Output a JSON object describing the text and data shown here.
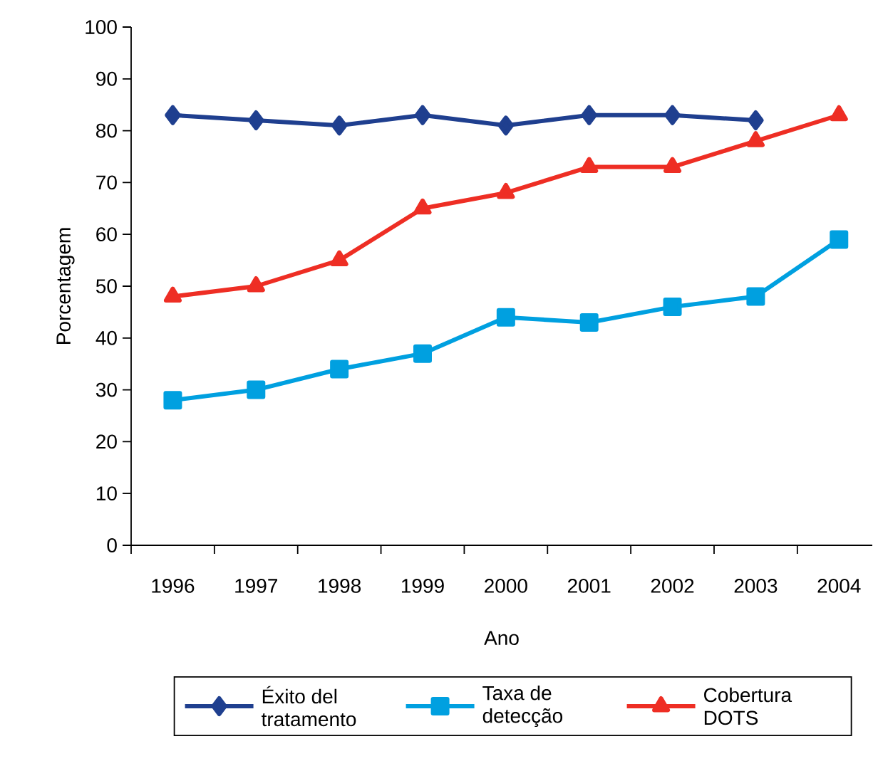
{
  "chart_data": {
    "type": "line",
    "xlabel": "Ano",
    "ylabel": "Porcentagem",
    "categories": [
      "1996",
      "1997",
      "1998",
      "1999",
      "2000",
      "2001",
      "2002",
      "2003",
      "2004"
    ],
    "series": [
      {
        "name": "Éxito del tratamento",
        "color": "#1f3f8f",
        "marker": "diamond",
        "values": [
          83,
          82,
          81,
          83,
          81,
          83,
          83,
          82,
          null
        ]
      },
      {
        "name": "Taxa de detecção",
        "color": "#00a0e0",
        "marker": "square",
        "values": [
          28,
          30,
          34,
          37,
          44,
          43,
          46,
          48,
          59
        ]
      },
      {
        "name": "Cobertura DOTS",
        "color": "#ee2e24",
        "marker": "triangle",
        "values": [
          48,
          50,
          55,
          65,
          68,
          73,
          73,
          78,
          83
        ]
      }
    ],
    "ylim": [
      0,
      100
    ],
    "yticks": [
      0,
      10,
      20,
      30,
      40,
      50,
      60,
      70,
      80,
      90,
      100
    ],
    "legend": "bottom",
    "line_style": "solid"
  }
}
